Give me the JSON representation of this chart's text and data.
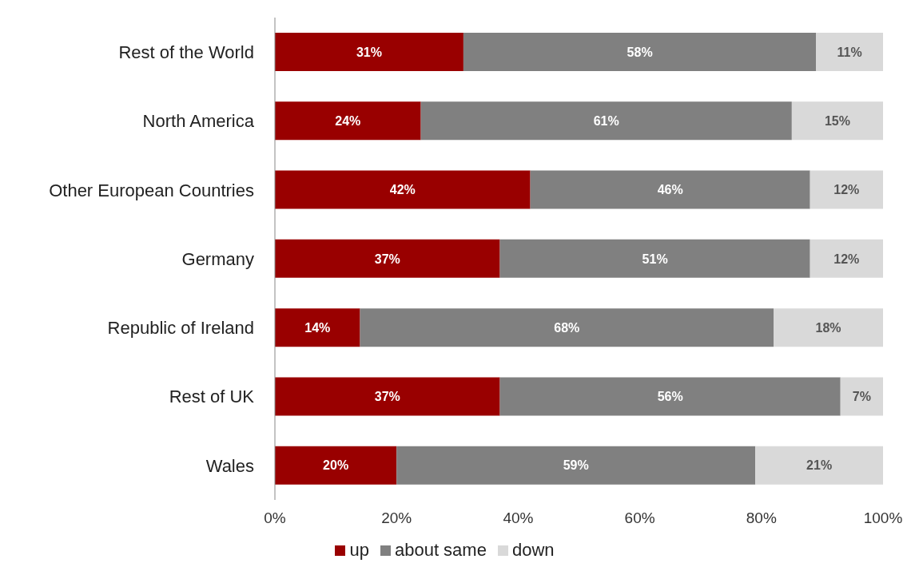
{
  "chart_data": {
    "type": "bar",
    "orientation": "horizontal",
    "stacked": true,
    "categories": [
      "Rest of the World",
      "North America",
      "Other European Countries",
      "Germany",
      "Republic of Ireland",
      "Rest of UK",
      "Wales"
    ],
    "series": [
      {
        "name": "up",
        "color": "#990000",
        "values": [
          31,
          24,
          42,
          37,
          14,
          37,
          20
        ],
        "value_labels": [
          "31%",
          "24%",
          "42%",
          "37%",
          "14%",
          "37%",
          "20%"
        ]
      },
      {
        "name": "about same",
        "color": "#808080",
        "values": [
          58,
          61,
          46,
          51,
          68,
          56,
          59
        ],
        "value_labels": [
          "58%",
          "61%",
          "46%",
          "51%",
          "68%",
          "56%",
          "59%"
        ]
      },
      {
        "name": "down",
        "color": "#d9d9d9",
        "values": [
          11,
          15,
          12,
          12,
          18,
          7,
          21
        ],
        "value_labels": [
          "11%",
          "15%",
          "12%",
          "12%",
          "18%",
          "7%",
          "21%"
        ]
      }
    ],
    "xlim": [
      0,
      100
    ],
    "xticks": [
      {
        "value": 0,
        "label": "0%"
      },
      {
        "value": 20,
        "label": "20%"
      },
      {
        "value": 40,
        "label": "40%"
      },
      {
        "value": 60,
        "label": "60%"
      },
      {
        "value": 80,
        "label": "80%"
      },
      {
        "value": 100,
        "label": "100%"
      }
    ],
    "legend": "bottom"
  }
}
